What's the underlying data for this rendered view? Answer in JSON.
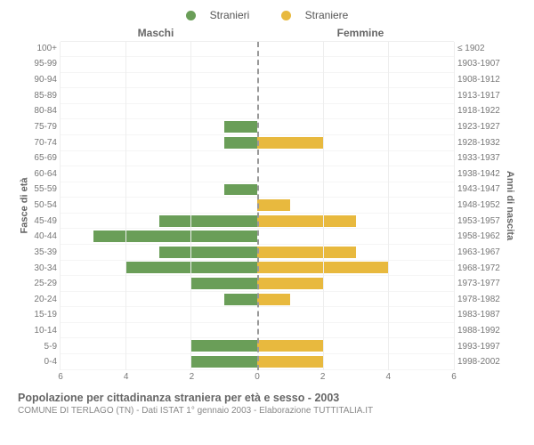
{
  "legend": {
    "male": {
      "label": "Stranieri",
      "color": "#6a9e58"
    },
    "female": {
      "label": "Straniere",
      "color": "#e8b93e"
    }
  },
  "headers": {
    "left": "Maschi",
    "right": "Femmine",
    "y_left": "Fasce di età",
    "y_right": "Anni di nascita"
  },
  "axis": {
    "max": 6,
    "ticks": [
      0,
      2,
      4,
      6
    ]
  },
  "colors": {
    "male_bar": "#6a9e58",
    "female_bar": "#e8b93e",
    "grid": "#eeeeee",
    "text": "#777777"
  },
  "rows": [
    {
      "age": "100+",
      "birth": "≤ 1902",
      "m": 0,
      "f": 0
    },
    {
      "age": "95-99",
      "birth": "1903-1907",
      "m": 0,
      "f": 0
    },
    {
      "age": "90-94",
      "birth": "1908-1912",
      "m": 0,
      "f": 0
    },
    {
      "age": "85-89",
      "birth": "1913-1917",
      "m": 0,
      "f": 0
    },
    {
      "age": "80-84",
      "birth": "1918-1922",
      "m": 0,
      "f": 0
    },
    {
      "age": "75-79",
      "birth": "1923-1927",
      "m": 1,
      "f": 0
    },
    {
      "age": "70-74",
      "birth": "1928-1932",
      "m": 1,
      "f": 2
    },
    {
      "age": "65-69",
      "birth": "1933-1937",
      "m": 0,
      "f": 0
    },
    {
      "age": "60-64",
      "birth": "1938-1942",
      "m": 0,
      "f": 0
    },
    {
      "age": "55-59",
      "birth": "1943-1947",
      "m": 1,
      "f": 0
    },
    {
      "age": "50-54",
      "birth": "1948-1952",
      "m": 0,
      "f": 1
    },
    {
      "age": "45-49",
      "birth": "1953-1957",
      "m": 3,
      "f": 3
    },
    {
      "age": "40-44",
      "birth": "1958-1962",
      "m": 5,
      "f": 0
    },
    {
      "age": "35-39",
      "birth": "1963-1967",
      "m": 3,
      "f": 3
    },
    {
      "age": "30-34",
      "birth": "1968-1972",
      "m": 4,
      "f": 4
    },
    {
      "age": "25-29",
      "birth": "1973-1977",
      "m": 2,
      "f": 2
    },
    {
      "age": "20-24",
      "birth": "1978-1982",
      "m": 1,
      "f": 1
    },
    {
      "age": "15-19",
      "birth": "1983-1987",
      "m": 0,
      "f": 0
    },
    {
      "age": "10-14",
      "birth": "1988-1992",
      "m": 0,
      "f": 0
    },
    {
      "age": "5-9",
      "birth": "1993-1997",
      "m": 2,
      "f": 2
    },
    {
      "age": "0-4",
      "birth": "1998-2002",
      "m": 2,
      "f": 2
    }
  ],
  "caption": "Popolazione per cittadinanza straniera per età e sesso - 2003",
  "subcaption": "COMUNE DI TERLAGO (TN) - Dati ISTAT 1° gennaio 2003 - Elaborazione TUTTITALIA.IT"
}
